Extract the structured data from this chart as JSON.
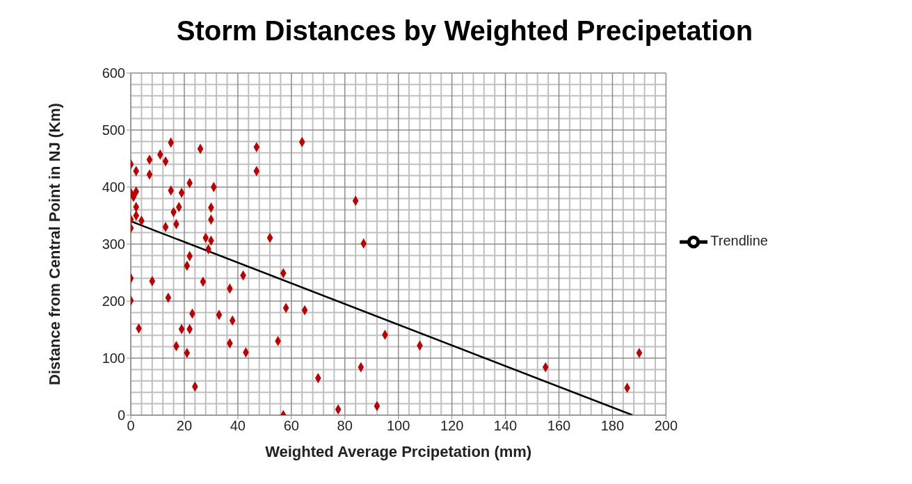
{
  "chart_data": {
    "type": "scatter",
    "title": "Storm Distances by Weighted Precipetation",
    "xlabel": "Weighted Average Prcipetation (mm)",
    "ylabel": "Distance from Central Point in NJ (Km)",
    "xlim": [
      0,
      200
    ],
    "xticks": [
      0,
      20,
      40,
      60,
      80,
      100,
      120,
      140,
      160,
      180,
      200
    ],
    "ylim": [
      0,
      600
    ],
    "yticks": [
      0,
      100,
      200,
      300,
      400,
      500,
      600
    ],
    "grid": true,
    "legend": "right",
    "marker": "diamond",
    "series": [
      {
        "color": "#c00000",
        "x": [
          0,
          2,
          0,
          2,
          1,
          2,
          2,
          0,
          4,
          0,
          7,
          7,
          11,
          13,
          15,
          15,
          13,
          16,
          17,
          18,
          19,
          22,
          22,
          21,
          26,
          31,
          30,
          30,
          28,
          30,
          29,
          27,
          0,
          0,
          8,
          14,
          3,
          17,
          19,
          22,
          23,
          21,
          24,
          33,
          37,
          38,
          37,
          42,
          43,
          47,
          47,
          52,
          55,
          57,
          58,
          57,
          64,
          65,
          70,
          77.5,
          84,
          87,
          86,
          92,
          95,
          108,
          155,
          185.5,
          190
        ],
        "values": [
          440,
          428,
          390,
          392,
          383,
          365,
          350,
          343,
          341,
          328,
          448,
          422,
          457,
          445,
          478,
          394,
          330,
          356,
          335,
          365,
          390,
          407,
          279,
          262,
          467,
          400,
          364,
          343,
          311,
          306,
          291,
          234,
          240,
          201,
          235,
          206,
          152,
          121,
          151,
          151,
          178,
          109,
          50,
          176,
          222,
          166,
          126,
          245,
          110,
          470,
          428,
          311,
          130,
          249,
          188,
          0,
          479,
          184,
          65,
          10,
          376,
          301,
          84,
          16,
          141,
          122,
          84,
          48,
          109
        ]
      },
      {
        "type": "line",
        "name": "Trendline",
        "color": "#000000",
        "marker": "none",
        "x": [
          0,
          187.5
        ],
        "values": [
          340,
          0
        ]
      }
    ]
  }
}
